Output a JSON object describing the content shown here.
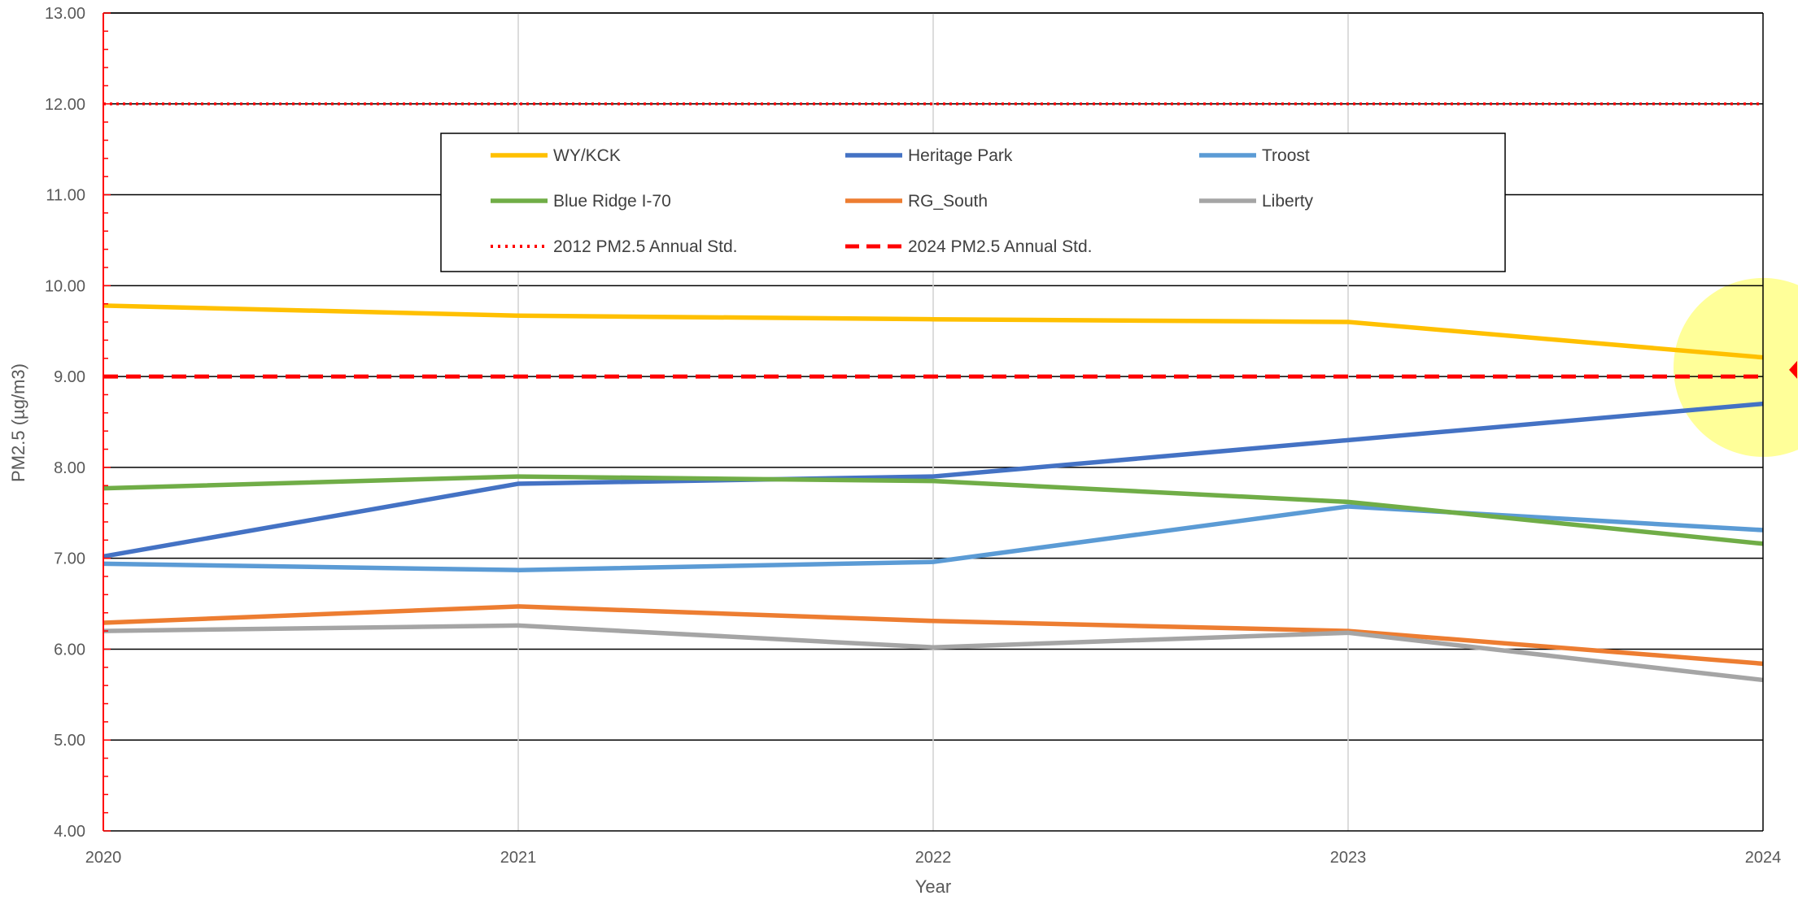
{
  "chart_data": {
    "type": "line",
    "title": "",
    "xlabel": "Year",
    "ylabel": "PM2.5 (µg/m3)",
    "x": [
      2020,
      2021,
      2022,
      2023,
      2024
    ],
    "x_tick_labels": [
      "2020",
      "2021",
      "2022",
      "2023",
      "2024"
    ],
    "ylim": [
      4,
      13
    ],
    "y_tick_labels": [
      "4.00",
      "5.00",
      "6.00",
      "7.00",
      "8.00",
      "9.00",
      "10.00",
      "11.00",
      "12.00",
      "13.00"
    ],
    "grid": true,
    "legend_position": "inside-top",
    "series": [
      {
        "name": "WY/KCK",
        "color": "#FFC000",
        "style": "solid",
        "values": [
          9.78,
          9.67,
          9.63,
          9.6,
          9.21
        ]
      },
      {
        "name": "Heritage Park",
        "color": "#4472C4",
        "style": "solid",
        "values": [
          7.02,
          7.82,
          7.9,
          8.3,
          8.7
        ]
      },
      {
        "name": "Troost",
        "color": "#5B9BD5",
        "style": "solid",
        "values": [
          6.94,
          6.87,
          6.96,
          7.57,
          7.31
        ]
      },
      {
        "name": "Blue Ridge I-70",
        "color": "#70AD47",
        "style": "solid",
        "values": [
          7.77,
          7.9,
          7.85,
          7.62,
          7.16
        ]
      },
      {
        "name": "RG_South",
        "color": "#ED7D31",
        "style": "solid",
        "values": [
          6.29,
          6.47,
          6.31,
          6.2,
          5.84
        ]
      },
      {
        "name": "Liberty",
        "color": "#A5A5A5",
        "style": "solid",
        "values": [
          6.2,
          6.26,
          6.02,
          6.18,
          5.66
        ]
      },
      {
        "name": "2012 PM2.5 Annual Std.",
        "color": "#FF0000",
        "style": "dotted",
        "values": [
          12,
          12,
          12,
          12,
          12
        ]
      },
      {
        "name": "2024 PM2.5 Annual Std.",
        "color": "#FF0000",
        "style": "dashed",
        "values": [
          9,
          9,
          9,
          9,
          9
        ]
      }
    ],
    "annotations": [
      {
        "type": "highlight-circle",
        "color": "#FFFF99",
        "near_series": "WY/KCK",
        "x": 2024,
        "y": 9.1
      }
    ]
  }
}
